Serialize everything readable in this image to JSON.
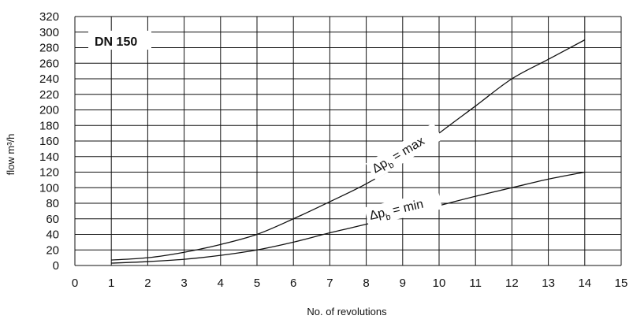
{
  "chart_data": {
    "type": "line",
    "xlabel": "No. of revolutions",
    "ylabel": "flow m³/h",
    "xlim": [
      0,
      15
    ],
    "ylim": [
      0,
      320
    ],
    "x_ticks": [
      0,
      1,
      2,
      3,
      4,
      5,
      6,
      7,
      8,
      9,
      10,
      11,
      12,
      13,
      14,
      15
    ],
    "y_ticks": [
      0,
      20,
      40,
      60,
      80,
      100,
      120,
      140,
      160,
      180,
      200,
      220,
      240,
      260,
      280,
      300,
      320
    ],
    "grid": true,
    "annotation_box": "DN 150",
    "series": [
      {
        "name": "Δp_b = max",
        "label": {
          "prefix": "Δp",
          "sub": "b",
          "suffix": " = max"
        },
        "x": [
          1,
          2,
          3,
          4,
          5,
          6,
          7,
          8,
          9,
          10,
          11,
          12,
          13,
          14
        ],
        "values": [
          7,
          10,
          17,
          27,
          40,
          60,
          82,
          105,
          133,
          170,
          205,
          240,
          265,
          290
        ]
      },
      {
        "name": "Δp_b = min",
        "label": {
          "prefix": "Δp",
          "sub": "b",
          "suffix": " = min"
        },
        "x": [
          1,
          2,
          3,
          4,
          5,
          6,
          7,
          8,
          9,
          10,
          11,
          12,
          13,
          14
        ],
        "values": [
          3,
          5,
          8,
          13,
          20,
          30,
          42,
          53,
          65,
          77,
          89,
          100,
          111,
          120
        ]
      }
    ]
  }
}
